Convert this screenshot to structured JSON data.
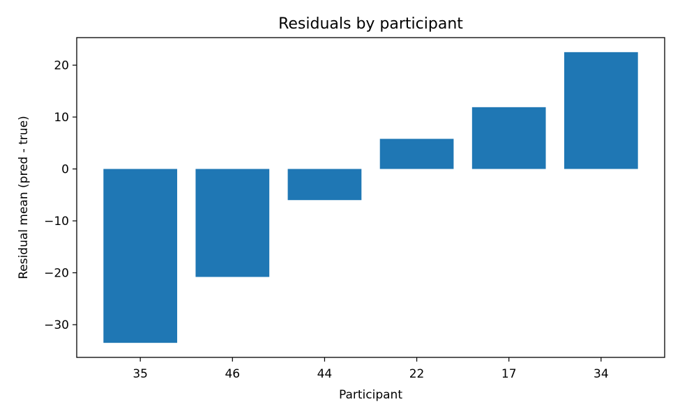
{
  "chart_data": {
    "type": "bar",
    "title": "Residuals by participant",
    "xlabel": "Participant",
    "ylabel": "Residual mean (pred - true)",
    "categories": [
      "35",
      "46",
      "44",
      "22",
      "17",
      "34"
    ],
    "values": [
      -33.5,
      -20.8,
      -6.0,
      5.8,
      11.9,
      22.5
    ],
    "ylim": [
      -36.3,
      25.3
    ],
    "yticks": [
      -30,
      -20,
      -10,
      0,
      10,
      20
    ],
    "ytick_labels": [
      "−30",
      "−20",
      "−10",
      "0",
      "10",
      "20"
    ],
    "bar_color": "#1f77b4",
    "grid": false,
    "legend": "none"
  }
}
